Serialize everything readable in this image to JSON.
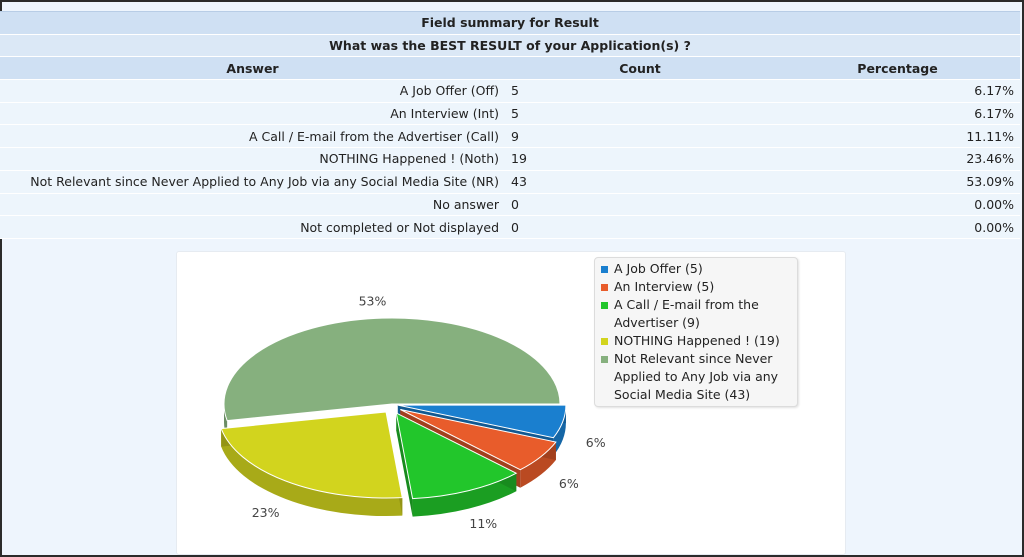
{
  "table": {
    "title": "Field summary for Result",
    "question": "What was the BEST RESULT of your Application(s) ?",
    "headers": {
      "answer": "Answer",
      "count": "Count",
      "percentage": "Percentage"
    },
    "rows": [
      {
        "answer": "A Job Offer (Off)",
        "count": "5",
        "percentage": "6.17%"
      },
      {
        "answer": "An Interview (Int)",
        "count": "5",
        "percentage": "6.17%"
      },
      {
        "answer": "A Call / E-mail from the Advertiser (Call)",
        "count": "9",
        "percentage": "11.11%"
      },
      {
        "answer": "NOTHING Happened ! (Noth)",
        "count": "19",
        "percentage": "23.46%"
      },
      {
        "answer": "Not Relevant since Never Applied to Any Job via any Social Media Site (NR)",
        "count": "43",
        "percentage": "53.09%"
      },
      {
        "answer": "No answer",
        "count": "0",
        "percentage": "0.00%"
      },
      {
        "answer": "Not completed or Not displayed",
        "count": "0",
        "percentage": "0.00%"
      }
    ]
  },
  "chart_data": {
    "type": "pie",
    "title": "",
    "slices": [
      {
        "name": "A Job Offer (5)",
        "value": 5,
        "label": "6%",
        "color": "#1a7fcf"
      },
      {
        "name": "An Interview (5)",
        "value": 5,
        "label": "6%",
        "color": "#e85c2b"
      },
      {
        "name": "A Call / E-mail from the Advertiser (9)",
        "value": 9,
        "label": "11%",
        "color": "#22c62b"
      },
      {
        "name": "NOTHING Happened ! (19)",
        "value": 19,
        "label": "23%",
        "color": "#d2d41e"
      },
      {
        "name": "Not Relevant since Never Applied to Any Job via any Social Media Site (43)",
        "value": 43,
        "label": "53%",
        "color": "#86b07e"
      }
    ],
    "legend_position": "top-right",
    "style": "3d-exploded"
  },
  "legend": {
    "lines": [
      [
        "A Job Offer (5)"
      ],
      [
        "An Interview (5)"
      ],
      [
        "A Call / E-mail from the",
        "Advertiser (9)"
      ],
      [
        "NOTHING Happened ! (19)"
      ],
      [
        "Not Relevant since Never",
        "Applied to Any Job via any",
        "Social Media Site (43)"
      ]
    ]
  }
}
